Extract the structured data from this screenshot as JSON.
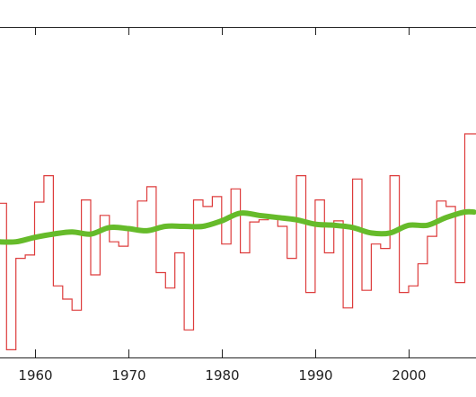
{
  "chart_data": {
    "type": "line",
    "title": "",
    "xlabel": "",
    "ylabel": "",
    "xlim": [
      1956.3,
      2007.2
    ],
    "ylim": [
      -1.05,
      1.95
    ],
    "grid": false,
    "x_ticks": [
      "1960",
      "1970",
      "1980",
      "1990",
      "2000"
    ],
    "series": [
      {
        "style": "step",
        "color": "#dd3b3b",
        "x": [
          1956,
          1957,
          1958,
          1959,
          1960,
          1961,
          1962,
          1963,
          1964,
          1965,
          1966,
          1967,
          1968,
          1969,
          1970,
          1971,
          1972,
          1973,
          1974,
          1975,
          1976,
          1977,
          1978,
          1979,
          1980,
          1981,
          1982,
          1983,
          1984,
          1985,
          1986,
          1987,
          1988,
          1989,
          1990,
          1991,
          1992,
          1993,
          1994,
          1995,
          1996,
          1997,
          1998,
          1999,
          2000,
          2001,
          2002,
          2003,
          2004,
          2005,
          2006,
          2007
        ],
        "y": [
          0.35,
          -0.98,
          -0.15,
          -0.12,
          0.36,
          0.6,
          -0.4,
          -0.52,
          -0.62,
          0.38,
          -0.3,
          0.24,
          0.0,
          -0.04,
          0.1,
          0.37,
          0.5,
          -0.28,
          -0.42,
          -0.1,
          -0.8,
          0.38,
          0.32,
          0.41,
          -0.02,
          0.48,
          -0.1,
          0.18,
          0.2,
          0.22,
          0.14,
          -0.15,
          0.6,
          -0.46,
          0.38,
          -0.1,
          0.19,
          -0.6,
          0.57,
          -0.44,
          -0.02,
          -0.06,
          0.6,
          -0.46,
          -0.4,
          -0.2,
          0.05,
          0.37,
          0.32,
          -0.37,
          0.98,
          0.98
        ]
      },
      {
        "style": "smooth",
        "color": "#66bb2a",
        "x": [
          1956,
          1958,
          1960,
          1962,
          1964,
          1966,
          1968,
          1970,
          1972,
          1974,
          1976,
          1978,
          1980,
          1982,
          1984,
          1986,
          1988,
          1990,
          1992,
          1994,
          1996,
          1998,
          2000,
          2002,
          2004,
          2006,
          2007
        ],
        "y": [
          0.0,
          0.0,
          0.04,
          0.07,
          0.09,
          0.07,
          0.13,
          0.12,
          0.1,
          0.14,
          0.14,
          0.14,
          0.19,
          0.26,
          0.24,
          0.22,
          0.2,
          0.16,
          0.15,
          0.13,
          0.08,
          0.08,
          0.15,
          0.15,
          0.22,
          0.27,
          0.27
        ]
      }
    ]
  }
}
